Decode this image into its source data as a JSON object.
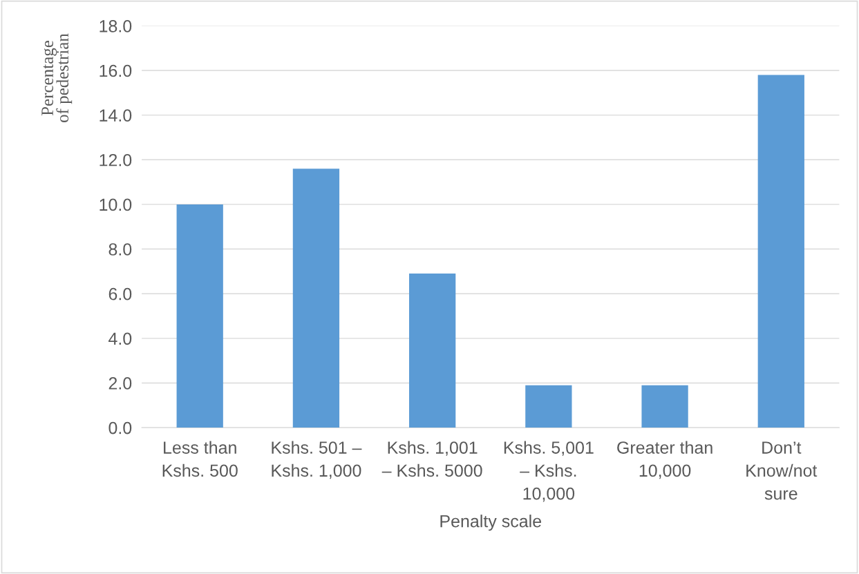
{
  "chart_data": {
    "type": "bar",
    "xlabel": "Penalty scale",
    "ylabel": "Percentage\nof pedestrian",
    "categories": [
      "Less than\nKshs. 500",
      "Kshs. 501 –\nKshs. 1,000",
      "Kshs. 1,001\n– Kshs. 5000",
      "Kshs. 5,001\n– Kshs.\n10,000",
      "Greater than\n10,000",
      "Don’t\nKnow/not\nsure"
    ],
    "values": [
      10.0,
      11.6,
      6.9,
      1.9,
      1.9,
      15.8
    ],
    "color": "#5b9bd5",
    "ylim": [
      0,
      18
    ],
    "yticks": [
      {
        "value": 0,
        "label": "0.0"
      },
      {
        "value": 2,
        "label": "2.0"
      },
      {
        "value": 4,
        "label": "4.0"
      },
      {
        "value": 6,
        "label": "6.0"
      },
      {
        "value": 8,
        "label": "8.0"
      },
      {
        "value": 10,
        "label": "10.0"
      },
      {
        "value": 12,
        "label": "12.0"
      },
      {
        "value": 14,
        "label": "14.0"
      },
      {
        "value": 16,
        "label": "16.0"
      },
      {
        "value": 18,
        "label": "18.0"
      }
    ],
    "grid": "y"
  }
}
